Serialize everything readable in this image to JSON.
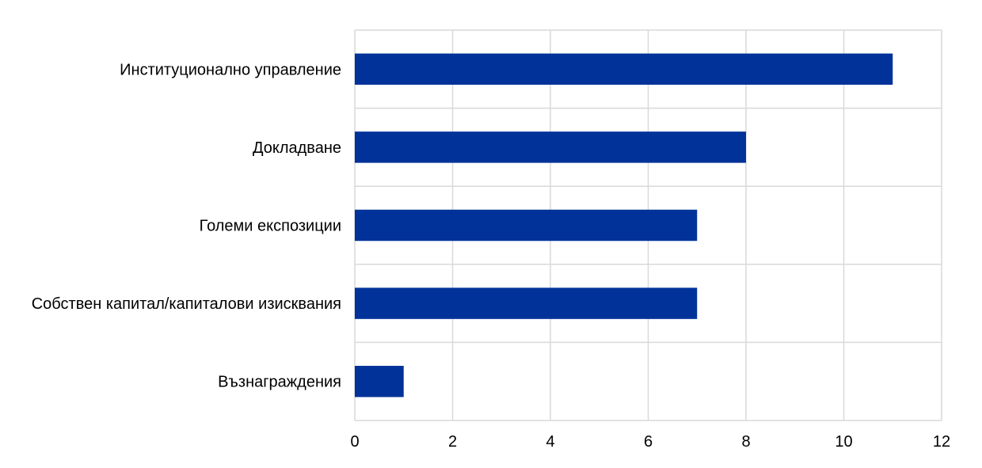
{
  "chart_data": {
    "type": "bar",
    "orientation": "horizontal",
    "categories": [
      "Институционално управление",
      "Докладване",
      "Големи експозиции",
      "Собствен капитал/капиталови изисквания",
      "Възнаграждения"
    ],
    "values": [
      11,
      8,
      7,
      7,
      1
    ],
    "xlim": [
      0,
      12
    ],
    "xticks": [
      "0",
      "2",
      "4",
      "6",
      "8",
      "10",
      "12"
    ],
    "grid": true,
    "legend": "none",
    "colors": {
      "bar": "#003299",
      "grid": "#d9d9d9"
    }
  }
}
